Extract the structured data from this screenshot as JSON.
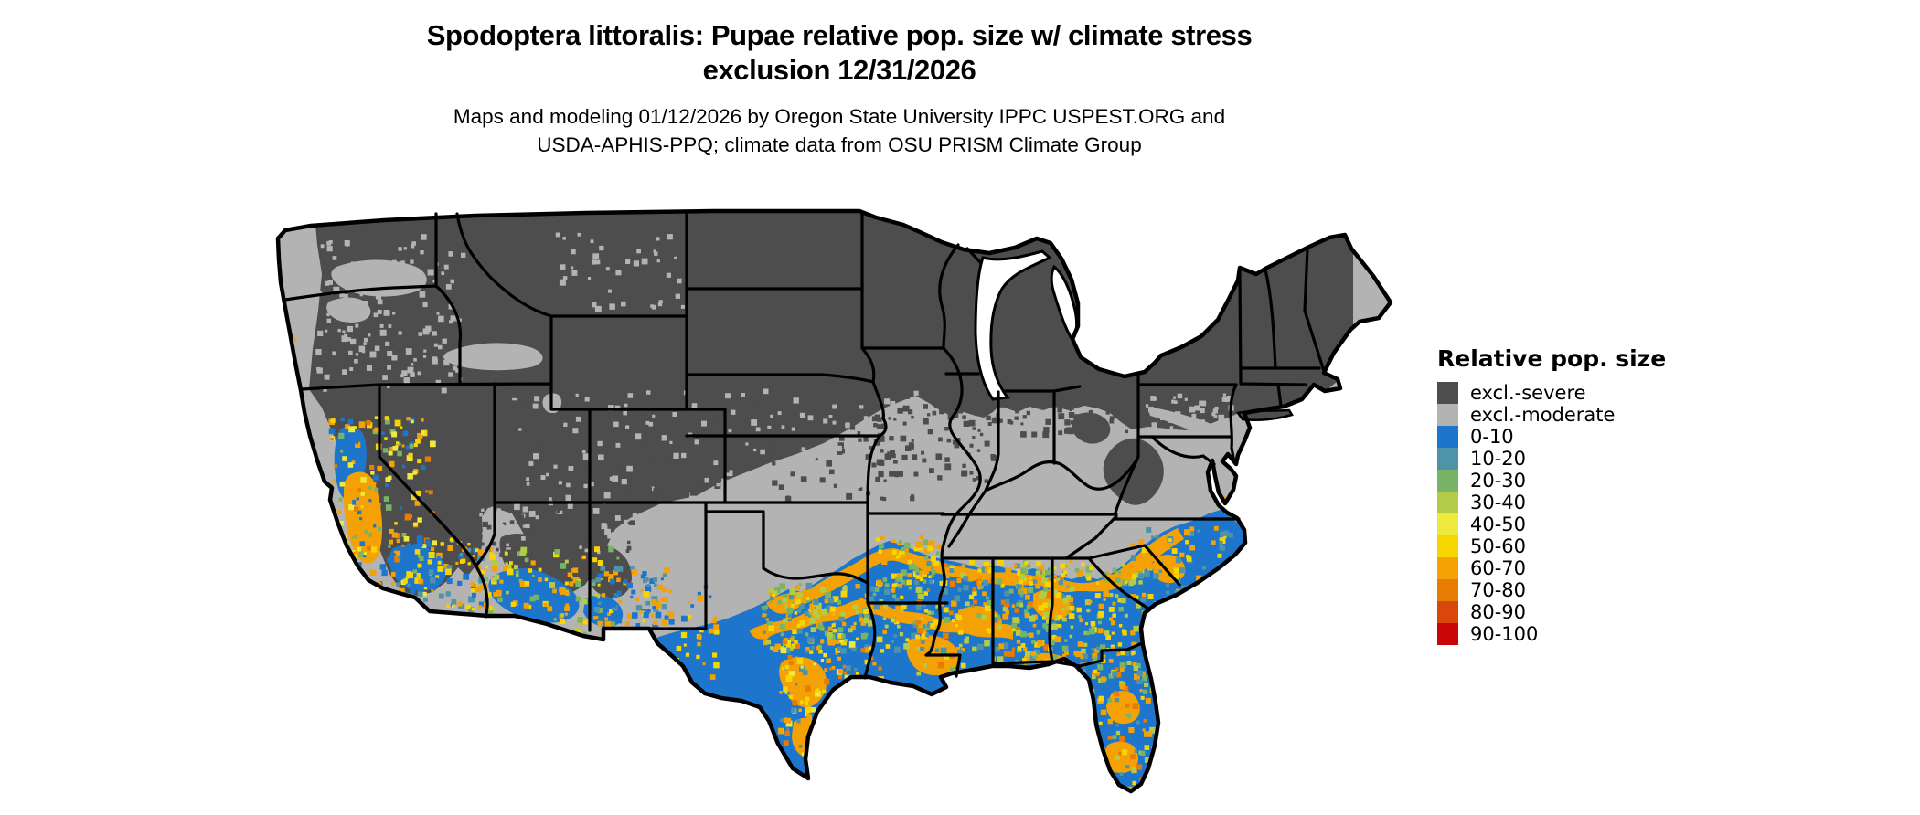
{
  "title": {
    "line1": "Spodoptera littoralis: Pupae relative pop. size w/ climate stress",
    "line2": "exclusion 12/31/2026"
  },
  "subtitle": {
    "line1": "Maps and modeling 01/12/2026 by Oregon State University IPPC USPEST.ORG and",
    "line2": "USDA-APHIS-PPQ; climate data from OSU PRISM Climate Group"
  },
  "legend": {
    "title": "Relative pop. size",
    "items": [
      {
        "label": "excl.-severe",
        "color": "#4d4d4d"
      },
      {
        "label": "excl.-moderate",
        "color": "#b3b3b3"
      },
      {
        "label": "0-10",
        "color": "#1d76cb"
      },
      {
        "label": "10-20",
        "color": "#4f93a8"
      },
      {
        "label": "20-30",
        "color": "#77b465"
      },
      {
        "label": "30-40",
        "color": "#b4cb47"
      },
      {
        "label": "40-50",
        "color": "#eeea3d"
      },
      {
        "label": "50-60",
        "color": "#f7d500"
      },
      {
        "label": "60-70",
        "color": "#f3a104"
      },
      {
        "label": "70-80",
        "color": "#e67c04"
      },
      {
        "label": "80-90",
        "color": "#d9480a"
      },
      {
        "label": "90-100",
        "color": "#c90606"
      }
    ]
  },
  "map_palette": {
    "excl_severe": "#4d4d4d",
    "excl_moderate": "#b3b3b3",
    "p0_10": "#1d76cb",
    "p10_20": "#4f93a8",
    "p20_30": "#77b465",
    "p30_40": "#b4cb47",
    "p40_50": "#eeea3d",
    "p50_60": "#f7d500",
    "p60_70": "#f3a104",
    "p70_80": "#e67c04",
    "p80_90": "#d9480a",
    "p90_100": "#c90606",
    "border": "#000000",
    "water": "#ffffff"
  }
}
